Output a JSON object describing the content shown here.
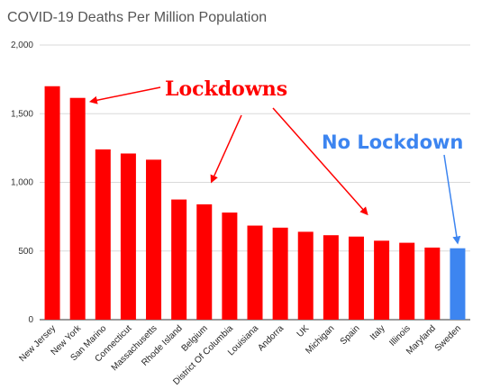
{
  "chart_data": {
    "type": "bar",
    "title": "COVID-19 Deaths Per Million Population",
    "categories": [
      "New Jersey",
      "New York",
      "San Marino",
      "Connecticut",
      "Massachusetts",
      "Rhode Island",
      "Belgium",
      "District Of Columbia",
      "Louisiana",
      "Andorra",
      "UK",
      "Michigan",
      "Spain",
      "Italy",
      "Illinois",
      "Maryland",
      "Sweden"
    ],
    "values": [
      1700,
      1615,
      1240,
      1210,
      1165,
      875,
      840,
      780,
      685,
      670,
      640,
      615,
      605,
      575,
      560,
      525,
      520
    ],
    "highlight_category": "Sweden",
    "ylim": [
      0,
      2000
    ],
    "yticks": [
      "0",
      "500",
      "1,000",
      "1,500",
      "2,000"
    ],
    "ytick_values": [
      0,
      500,
      1000,
      1500,
      2000
    ],
    "grid": true,
    "colors": {
      "bar": "#ff0000",
      "highlight": "#3d85f0",
      "lockdown_text": "#ff0000",
      "no_lockdown_text": "#3d85f0"
    },
    "annotations": {
      "lockdowns": {
        "text": "Lockdowns",
        "points_to": [
          "New York",
          "Belgium",
          "Spain"
        ]
      },
      "no_lockdown": {
        "text": "No Lockdown",
        "points_to": [
          "Sweden"
        ]
      }
    }
  }
}
